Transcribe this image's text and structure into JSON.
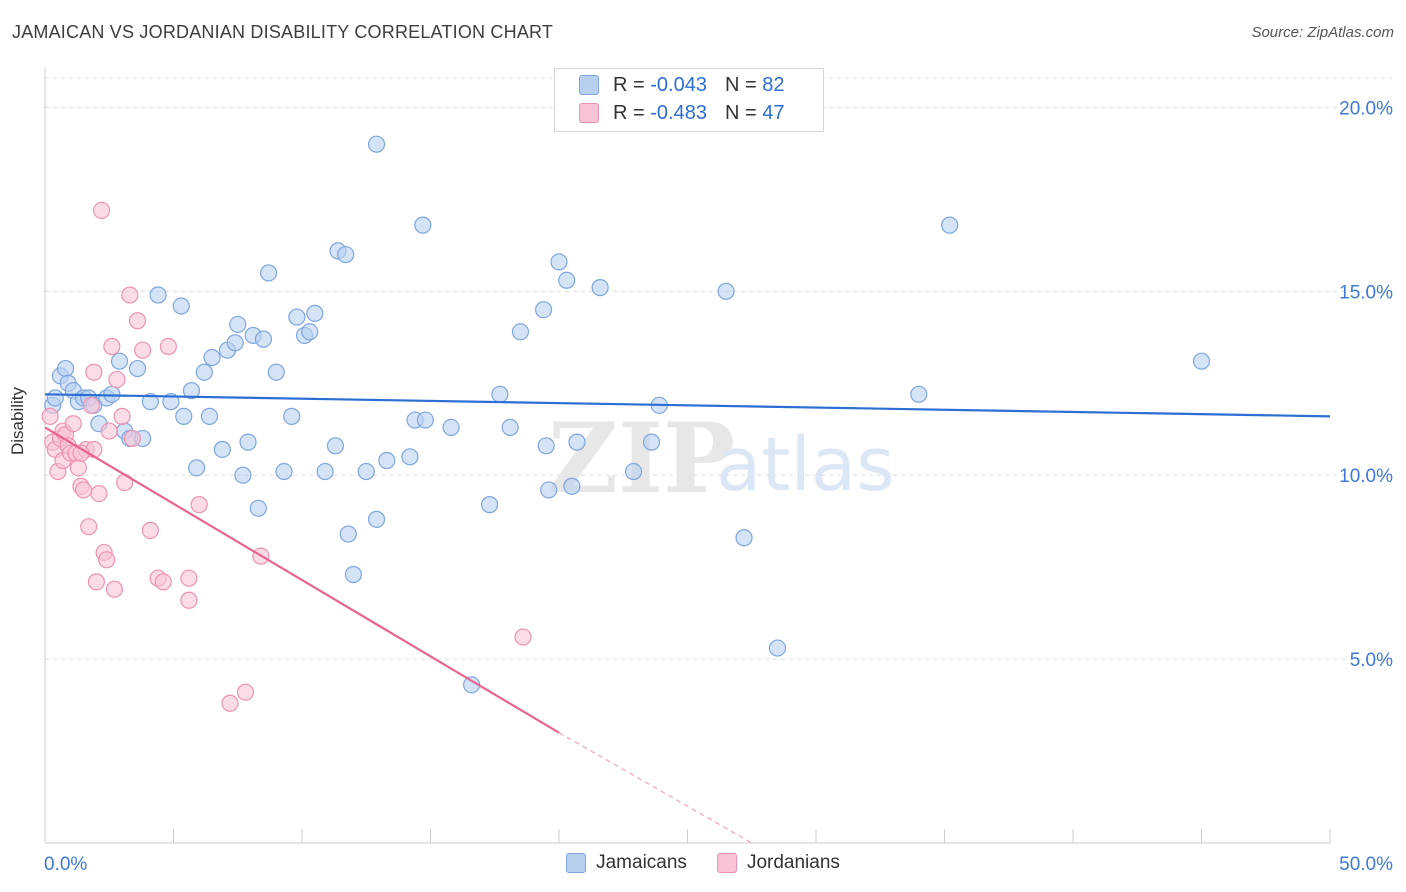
{
  "title": "JAMAICAN VS JORDANIAN DISABILITY CORRELATION CHART",
  "source": "Source: ZipAtlas.com",
  "watermark": {
    "zip": "ZIP",
    "atlas": "atlas"
  },
  "legend_top": [
    {
      "r_label": "R =",
      "r_value": "-0.043",
      "n_label": "N =",
      "n_value": "82"
    },
    {
      "r_label": "R =",
      "r_value": "-0.483",
      "n_label": "N =",
      "n_value": "47"
    }
  ],
  "legend_bottom": [
    "Jamaicans",
    "Jordanians"
  ],
  "colors": {
    "blue_fill": "#b8d0f0",
    "blue_stroke": "#7fa6dd",
    "blue_line": "#2b6ed4",
    "pink_fill": "#f8c4d5",
    "pink_stroke": "#ec93b1",
    "pink_line": "#e8648f",
    "axis_text": "#3d7ad6",
    "grid": "#dddddd"
  },
  "chart_data": {
    "type": "scatter",
    "title": "JAMAICAN VS JORDANIAN DISABILITY CORRELATION CHART",
    "xlabel": "",
    "ylabel": "Disability",
    "xlim": [
      0,
      50
    ],
    "ylim": [
      0,
      20.8
    ],
    "x_tick_labels": [
      "0.0%",
      "50.0%"
    ],
    "y_ticks": [
      5,
      10,
      15,
      20
    ],
    "y_tick_labels": [
      "5.0%",
      "10.0%",
      "15.0%",
      "20.0%"
    ],
    "series": [
      {
        "name": "Jamaicans",
        "r": -0.043,
        "n": 82,
        "trend": {
          "x": [
            0,
            50
          ],
          "y": [
            12.2,
            11.6
          ]
        },
        "points": [
          [
            0.3,
            11.9
          ],
          [
            0.4,
            12.1
          ],
          [
            0.6,
            12.7
          ],
          [
            0.8,
            12.9
          ],
          [
            0.9,
            12.5
          ],
          [
            1.1,
            12.3
          ],
          [
            1.3,
            12.0
          ],
          [
            1.5,
            12.1
          ],
          [
            1.7,
            12.1
          ],
          [
            1.9,
            11.9
          ],
          [
            2.1,
            11.4
          ],
          [
            2.4,
            12.1
          ],
          [
            2.6,
            12.2
          ],
          [
            2.9,
            13.1
          ],
          [
            3.1,
            11.2
          ],
          [
            3.3,
            11.0
          ],
          [
            3.6,
            12.9
          ],
          [
            3.8,
            11.0
          ],
          [
            4.1,
            12.0
          ],
          [
            4.4,
            14.9
          ],
          [
            4.9,
            12.0
          ],
          [
            5.3,
            14.6
          ],
          [
            5.4,
            11.6
          ],
          [
            5.7,
            12.3
          ],
          [
            5.9,
            10.2
          ],
          [
            6.2,
            12.8
          ],
          [
            6.4,
            11.6
          ],
          [
            6.5,
            13.2
          ],
          [
            6.9,
            10.7
          ],
          [
            7.1,
            13.4
          ],
          [
            7.4,
            13.6
          ],
          [
            7.5,
            14.1
          ],
          [
            7.7,
            10.0
          ],
          [
            7.9,
            10.9
          ],
          [
            8.1,
            13.8
          ],
          [
            8.3,
            9.1
          ],
          [
            8.5,
            13.7
          ],
          [
            8.7,
            15.5
          ],
          [
            9.0,
            12.8
          ],
          [
            9.3,
            10.1
          ],
          [
            9.6,
            11.6
          ],
          [
            9.8,
            14.3
          ],
          [
            10.1,
            13.8
          ],
          [
            10.3,
            13.9
          ],
          [
            10.5,
            14.4
          ],
          [
            10.9,
            10.1
          ],
          [
            11.3,
            10.8
          ],
          [
            11.4,
            16.1
          ],
          [
            11.7,
            16.0
          ],
          [
            11.8,
            8.4
          ],
          [
            12.0,
            7.3
          ],
          [
            12.5,
            10.1
          ],
          [
            12.9,
            8.8
          ],
          [
            12.9,
            19.0
          ],
          [
            13.3,
            10.4
          ],
          [
            14.2,
            10.5
          ],
          [
            14.4,
            11.5
          ],
          [
            14.7,
            16.8
          ],
          [
            14.8,
            11.5
          ],
          [
            15.8,
            11.3
          ],
          [
            16.6,
            4.3
          ],
          [
            17.3,
            9.2
          ],
          [
            17.7,
            12.2
          ],
          [
            18.1,
            11.3
          ],
          [
            18.5,
            13.9
          ],
          [
            19.4,
            14.5
          ],
          [
            19.5,
            10.8
          ],
          [
            19.6,
            9.6
          ],
          [
            20.0,
            15.8
          ],
          [
            20.3,
            15.3
          ],
          [
            20.5,
            9.7
          ],
          [
            20.7,
            10.9
          ],
          [
            21.6,
            15.1
          ],
          [
            22.9,
            10.1
          ],
          [
            23.6,
            10.9
          ],
          [
            23.9,
            11.9
          ],
          [
            26.5,
            15.0
          ],
          [
            27.2,
            8.3
          ],
          [
            28.5,
            5.3
          ],
          [
            35.2,
            16.8
          ],
          [
            45.0,
            13.1
          ],
          [
            34.0,
            12.2
          ]
        ]
      },
      {
        "name": "Jordanians",
        "r": -0.483,
        "n": 47,
        "trend": {
          "x": [
            0,
            20
          ],
          "y": [
            11.3,
            3.0
          ]
        },
        "trend_dashed": {
          "x": [
            20,
            27.5
          ],
          "y": [
            3.0,
            0.0
          ]
        },
        "points": [
          [
            0.2,
            11.6
          ],
          [
            0.3,
            10.9
          ],
          [
            0.4,
            10.7
          ],
          [
            0.5,
            10.1
          ],
          [
            0.6,
            11.0
          ],
          [
            0.7,
            11.2
          ],
          [
            0.7,
            10.4
          ],
          [
            0.8,
            11.1
          ],
          [
            0.9,
            10.8
          ],
          [
            1.0,
            10.6
          ],
          [
            1.1,
            11.4
          ],
          [
            1.2,
            10.6
          ],
          [
            1.3,
            10.2
          ],
          [
            1.4,
            9.7
          ],
          [
            1.5,
            9.6
          ],
          [
            1.6,
            10.7
          ],
          [
            1.7,
            8.6
          ],
          [
            1.8,
            11.9
          ],
          [
            1.9,
            12.8
          ],
          [
            2.0,
            7.1
          ],
          [
            2.1,
            9.5
          ],
          [
            2.2,
            17.2
          ],
          [
            2.3,
            7.9
          ],
          [
            2.4,
            7.7
          ],
          [
            2.5,
            11.2
          ],
          [
            2.6,
            13.5
          ],
          [
            2.7,
            6.9
          ],
          [
            2.8,
            12.6
          ],
          [
            3.0,
            11.6
          ],
          [
            3.1,
            9.8
          ],
          [
            3.3,
            14.9
          ],
          [
            3.4,
            11.0
          ],
          [
            3.6,
            14.2
          ],
          [
            3.8,
            13.4
          ],
          [
            4.1,
            8.5
          ],
          [
            4.4,
            7.2
          ],
          [
            4.6,
            7.1
          ],
          [
            4.8,
            13.5
          ],
          [
            5.6,
            7.2
          ],
          [
            5.6,
            6.6
          ],
          [
            6.0,
            9.2
          ],
          [
            7.2,
            3.8
          ],
          [
            7.8,
            4.1
          ],
          [
            8.4,
            7.8
          ],
          [
            18.6,
            5.6
          ],
          [
            1.9,
            10.7
          ],
          [
            1.4,
            10.6
          ]
        ]
      }
    ]
  }
}
